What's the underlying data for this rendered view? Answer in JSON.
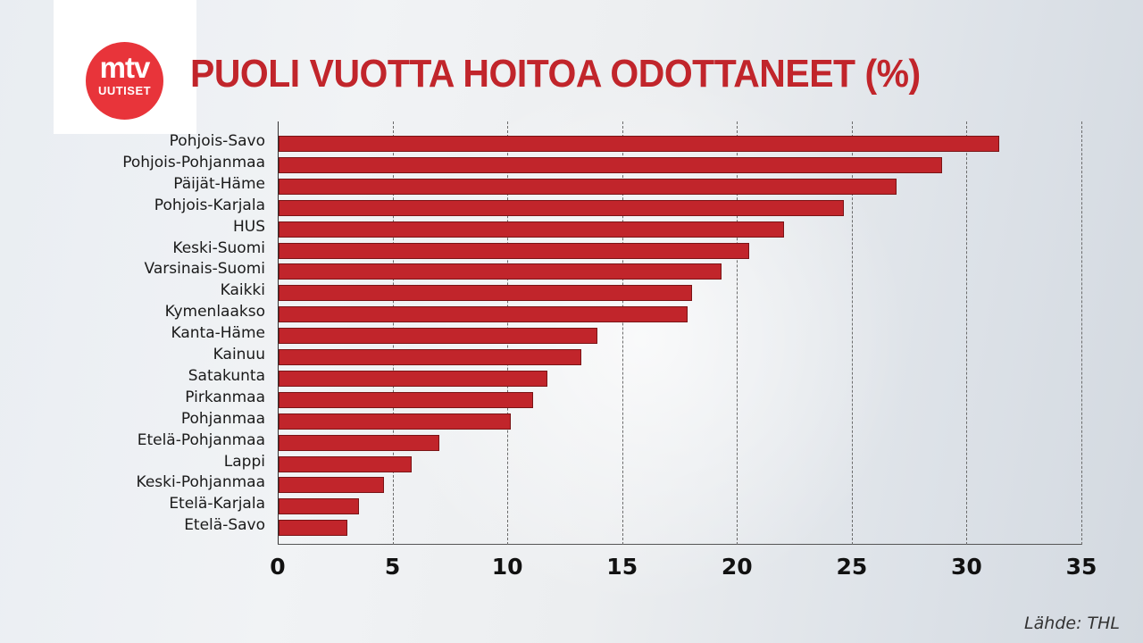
{
  "logo": {
    "line1": "mtv",
    "line2": "UUTISET"
  },
  "chart_data": {
    "type": "bar",
    "orientation": "horizontal",
    "title": "PUOLI VUOTTA HOITOA ODOTTANEET (%)",
    "xlabel": "",
    "ylabel": "",
    "xlim": [
      0,
      35
    ],
    "xticks": [
      0,
      5,
      10,
      15,
      20,
      25,
      30,
      35
    ],
    "grid": "vertical dashed",
    "legend": "none",
    "bar_color": "#c1252b",
    "categories": [
      "Pohjois-Savo",
      "Pohjois-Pohjanmaa",
      "Päijät-Häme",
      "Pohjois-Karjala",
      "HUS",
      "Keski-Suomi",
      "Varsinais-Suomi",
      "Kaikki",
      "Kymenlaakso",
      "Kanta-Häme",
      "Kainuu",
      "Satakunta",
      "Pirkanmaa",
      "Pohjanmaa",
      "Etelä-Pohjanmaa",
      "Lappi",
      "Keski-Pohjanmaa",
      "Etelä-Karjala",
      "Etelä-Savo"
    ],
    "values": [
      31.4,
      28.9,
      26.9,
      24.6,
      22.0,
      20.5,
      19.3,
      18.0,
      17.8,
      13.9,
      13.2,
      11.7,
      11.1,
      10.1,
      7.0,
      5.8,
      4.6,
      3.5,
      3.0
    ],
    "source": "Lähde: THL"
  }
}
